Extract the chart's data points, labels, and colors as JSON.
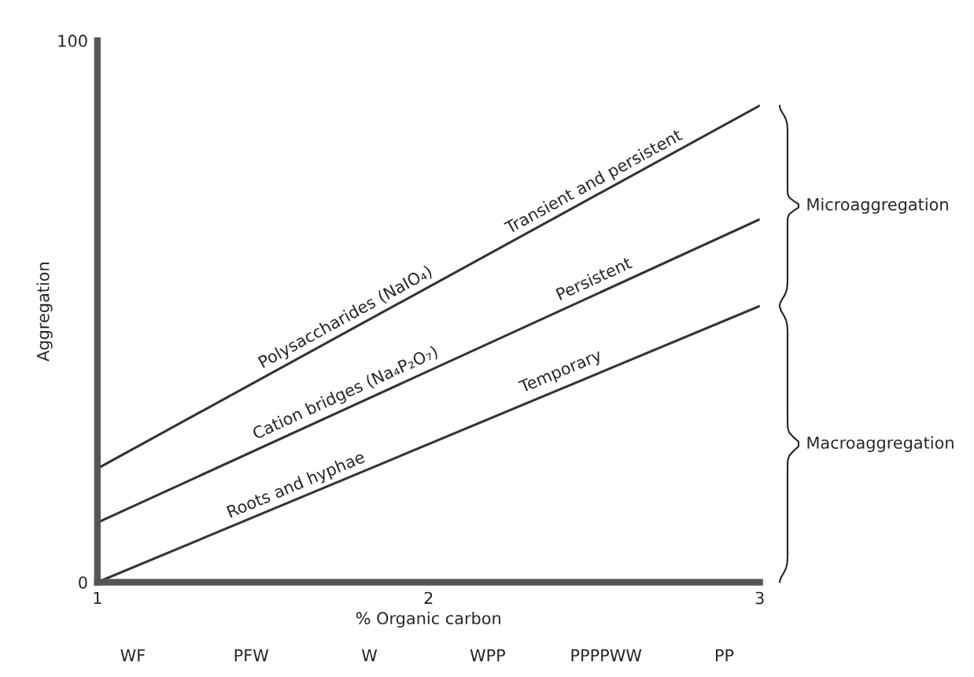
{
  "chart_data": {
    "type": "line",
    "xlabel": "% Organic carbon",
    "ylabel": "Aggregation",
    "x": [
      1,
      3
    ],
    "xlim": [
      1,
      3
    ],
    "xticks": [
      1,
      2,
      3
    ],
    "ylim": [
      0,
      100
    ],
    "yticks": [
      0,
      100
    ],
    "grid": false,
    "marker": "none",
    "line_style": "solid",
    "series": [
      {
        "color": "#333333",
        "values": [
          21,
          88
        ]
      },
      {
        "color": "#333333",
        "values": [
          11,
          67
        ]
      },
      {
        "color": "#333333",
        "values": [
          0,
          51
        ]
      }
    ],
    "annotations": [
      {
        "text": "Polysaccharides (NaIO₄)",
        "x": 1.75,
        "y": 46
      },
      {
        "text": "Transient and persistent",
        "x": 2.5,
        "y": 71
      },
      {
        "text": "Cation bridges (Na₄P₂O₇)",
        "x": 1.75,
        "y": 32
      },
      {
        "text": "Persistent",
        "x": 2.5,
        "y": 53
      },
      {
        "text": "Roots and hyphae",
        "x": 1.6,
        "y": 15
      },
      {
        "text": "Temporary",
        "x": 2.4,
        "y": 36
      },
      "Microaggregation",
      "Macroaggregation",
      "WF",
      "PFW",
      "W",
      "WPP",
      "PPPPWW",
      "PP"
    ]
  }
}
